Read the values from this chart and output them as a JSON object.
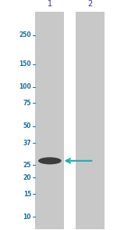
{
  "bg_color": "#ffffff",
  "lane_color": "#c8c8c8",
  "text_color": "#1a6ea0",
  "band_color": "#2a2a2a",
  "arrow_color": "#1ab0b0",
  "lane_labels": [
    "1",
    "2"
  ],
  "mw_markers": [
    250,
    150,
    100,
    75,
    50,
    37,
    25,
    20,
    15,
    10
  ],
  "band_lane": 0,
  "band_mw": 27,
  "fig_width": 1.5,
  "fig_height": 2.93,
  "dpi": 100
}
